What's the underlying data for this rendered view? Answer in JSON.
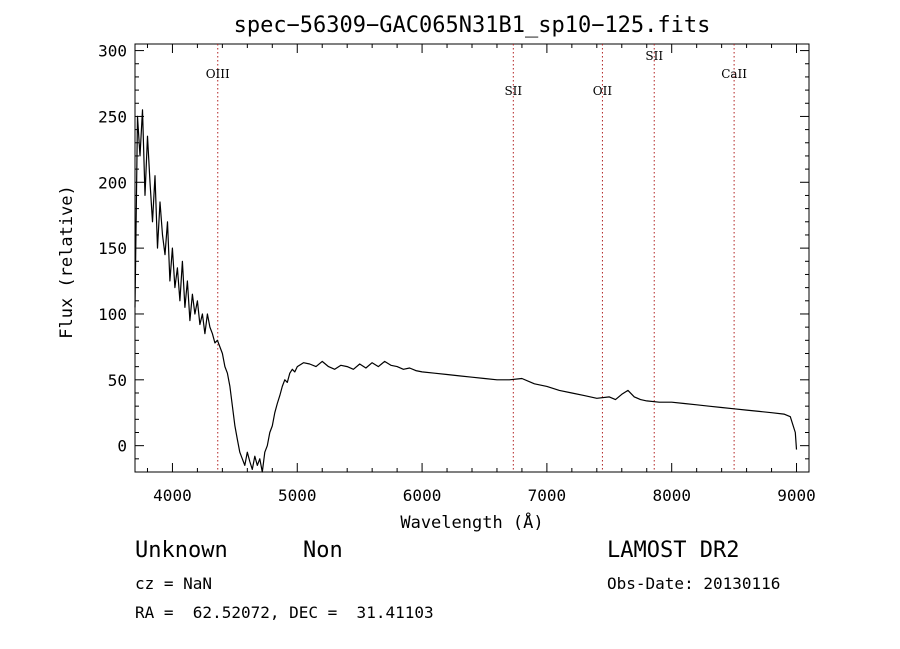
{
  "chart_data": {
    "type": "line",
    "title": "spec−56309−GAC065N31B1_sp10−125.fits",
    "xlabel": "Wavelength (Å)",
    "ylabel": "Flux (relative)",
    "xlim": [
      3700,
      9100
    ],
    "ylim": [
      -20,
      305
    ],
    "xticks": [
      4000,
      5000,
      6000,
      7000,
      8000,
      9000
    ],
    "yticks": [
      0,
      50,
      100,
      150,
      200,
      250,
      300
    ],
    "grid": false,
    "series": [
      {
        "x": [
          3700,
          3720,
          3740,
          3760,
          3780,
          3800,
          3820,
          3840,
          3860,
          3880,
          3900,
          3920,
          3940,
          3960,
          3980,
          4000,
          4020,
          4040,
          4060,
          4080,
          4100,
          4120,
          4140,
          4160,
          4180,
          4200,
          4220,
          4240,
          4260,
          4280,
          4300,
          4320,
          4340,
          4360,
          4380,
          4400,
          4420,
          4440,
          4460,
          4480,
          4500,
          4520,
          4540,
          4560,
          4580,
          4600,
          4620,
          4640,
          4660,
          4680,
          4700,
          4720,
          4740,
          4760,
          4780,
          4800,
          4820,
          4840,
          4860,
          4880,
          4900,
          4920,
          4940,
          4960,
          4980,
          5000,
          5050,
          5100,
          5150,
          5200,
          5250,
          5300,
          5350,
          5400,
          5450,
          5500,
          5550,
          5600,
          5650,
          5700,
          5750,
          5800,
          5850,
          5900,
          5950,
          6000,
          6100,
          6200,
          6300,
          6400,
          6500,
          6600,
          6700,
          6800,
          6900,
          7000,
          7100,
          7200,
          7300,
          7400,
          7500,
          7550,
          7600,
          7650,
          7700,
          7750,
          7800,
          7900,
          8000,
          8100,
          8200,
          8300,
          8400,
          8500,
          8600,
          8700,
          8800,
          8900,
          8950,
          8990,
          9000
        ],
        "y": [
          105,
          250,
          220,
          255,
          190,
          235,
          200,
          170,
          205,
          150,
          185,
          160,
          145,
          170,
          125,
          150,
          120,
          135,
          110,
          140,
          105,
          125,
          95,
          115,
          100,
          110,
          92,
          100,
          85,
          100,
          90,
          85,
          78,
          80,
          75,
          70,
          60,
          55,
          45,
          30,
          15,
          5,
          -5,
          -10,
          -15,
          -5,
          -12,
          -18,
          -8,
          -15,
          -10,
          -20,
          -5,
          0,
          10,
          15,
          25,
          32,
          38,
          45,
          50,
          48,
          55,
          58,
          56,
          60,
          63,
          62,
          60,
          64,
          60,
          58,
          61,
          60,
          58,
          62,
          59,
          63,
          60,
          64,
          61,
          60,
          58,
          59,
          57,
          56,
          55,
          54,
          53,
          52,
          51,
          50,
          50,
          51,
          47,
          45,
          42,
          40,
          38,
          36,
          37,
          35,
          39,
          42,
          37,
          35,
          34,
          33,
          33,
          32,
          31,
          30,
          29,
          28,
          27,
          26,
          25,
          24,
          22,
          10,
          -3
        ]
      }
    ],
    "lines": [
      {
        "label": "OIII",
        "x": 4363
      },
      {
        "label": "SII",
        "x": 6731
      },
      {
        "label": "OII",
        "x": 7445
      },
      {
        "label": "SII",
        "x": 7860
      },
      {
        "label": "CaII",
        "x": 8500
      }
    ]
  },
  "info": {
    "object_class": "Unknown",
    "object_subclass": "Non",
    "cz": "cz = NaN",
    "radec": "RA =  62.52072, DEC =  31.41103",
    "survey": "LAMOST DR2",
    "obs_date": "Obs-Date: 20130116"
  }
}
